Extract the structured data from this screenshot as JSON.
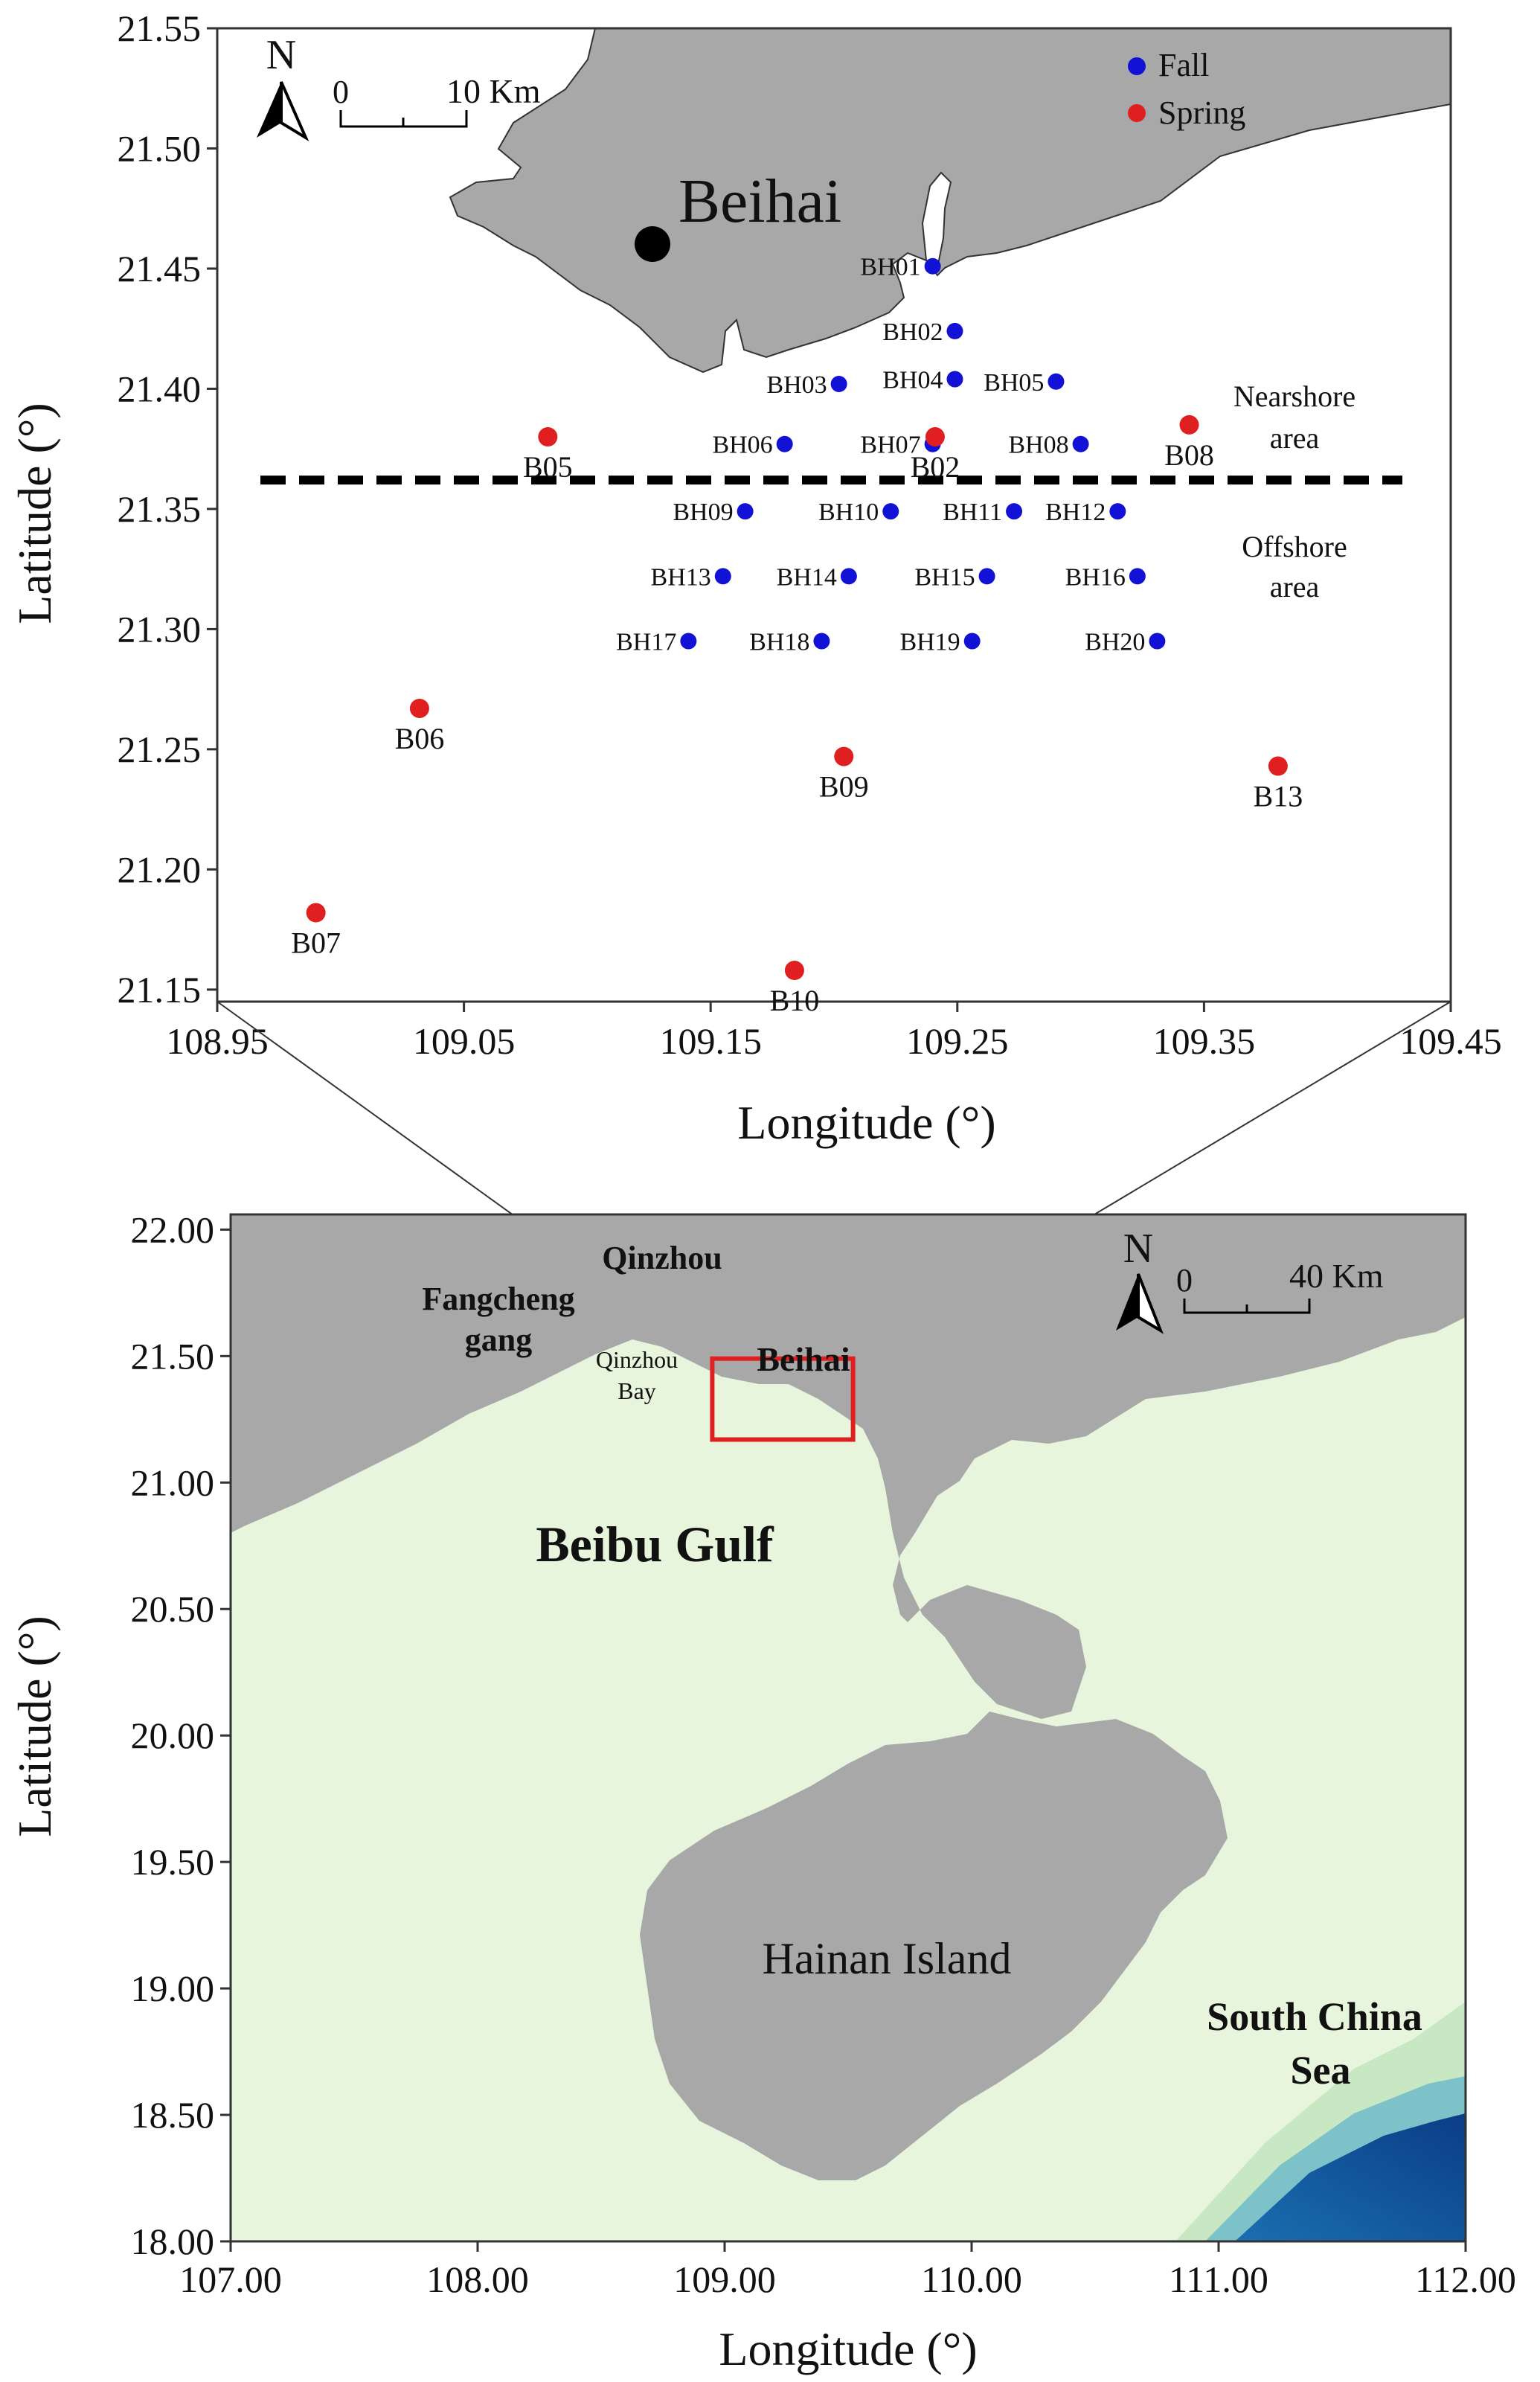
{
  "colors": {
    "fall": "#1212d6",
    "spring": "#e02020",
    "land": "#a8a8a8",
    "sea": "#e6f5dc",
    "inset_box": "#e02020"
  },
  "top_map": {
    "x_ticks": [
      "108.95",
      "109.05",
      "109.15",
      "109.25",
      "109.35",
      "109.45"
    ],
    "y_ticks": [
      "21.55",
      "21.50",
      "21.45",
      "21.40",
      "21.35",
      "21.30",
      "21.25",
      "21.20",
      "21.15"
    ],
    "xlabel": "Longitude (°)",
    "ylabel": "Latitude (°)",
    "city": "Beihai",
    "north": "N",
    "scale_zero": "0",
    "scale_label": "10 Km",
    "legend": {
      "fall": "Fall",
      "spring": "Spring"
    },
    "nearshore_1": "Nearshore",
    "nearshore_2": "area",
    "offshore_1": "Offshore",
    "offshore_2": "area",
    "divider_lat": 21.362,
    "fall_stations": [
      {
        "name": "BH01",
        "lon": 109.24,
        "lat": 21.451
      },
      {
        "name": "BH02",
        "lon": 109.249,
        "lat": 21.424
      },
      {
        "name": "BH03",
        "lon": 109.202,
        "lat": 21.402
      },
      {
        "name": "BH04",
        "lon": 109.249,
        "lat": 21.404
      },
      {
        "name": "BH05",
        "lon": 109.29,
        "lat": 21.403
      },
      {
        "name": "BH06",
        "lon": 109.18,
        "lat": 21.377
      },
      {
        "name": "BH07",
        "lon": 109.24,
        "lat": 21.377
      },
      {
        "name": "BH08",
        "lon": 109.3,
        "lat": 21.377
      },
      {
        "name": "BH09",
        "lon": 109.164,
        "lat": 21.349
      },
      {
        "name": "BH10",
        "lon": 109.223,
        "lat": 21.349
      },
      {
        "name": "BH11",
        "lon": 109.273,
        "lat": 21.349
      },
      {
        "name": "BH12",
        "lon": 109.315,
        "lat": 21.349
      },
      {
        "name": "BH13",
        "lon": 109.155,
        "lat": 21.322
      },
      {
        "name": "BH14",
        "lon": 109.206,
        "lat": 21.322
      },
      {
        "name": "BH15",
        "lon": 109.262,
        "lat": 21.322
      },
      {
        "name": "BH16",
        "lon": 109.323,
        "lat": 21.322
      },
      {
        "name": "BH17",
        "lon": 109.141,
        "lat": 21.295
      },
      {
        "name": "BH18",
        "lon": 109.195,
        "lat": 21.295
      },
      {
        "name": "BH19",
        "lon": 109.256,
        "lat": 21.295
      },
      {
        "name": "BH20",
        "lon": 109.331,
        "lat": 21.295
      }
    ],
    "spring_stations": [
      {
        "name": "B02",
        "lon": 109.241,
        "lat": 21.38
      },
      {
        "name": "B05",
        "lon": 109.084,
        "lat": 21.38
      },
      {
        "name": "B06",
        "lon": 109.032,
        "lat": 21.267
      },
      {
        "name": "B07",
        "lon": 108.99,
        "lat": 21.182
      },
      {
        "name": "B08",
        "lon": 109.344,
        "lat": 21.385
      },
      {
        "name": "B09",
        "lon": 109.204,
        "lat": 21.247
      },
      {
        "name": "B10",
        "lon": 109.184,
        "lat": 21.158
      },
      {
        "name": "B13",
        "lon": 109.38,
        "lat": 21.243
      }
    ]
  },
  "bottom_map": {
    "x_ticks": [
      "107.00",
      "108.00",
      "109.00",
      "110.00",
      "111.00",
      "112.00"
    ],
    "y_ticks": [
      "22.00",
      "21.50",
      "21.00",
      "20.50",
      "20.00",
      "19.50",
      "19.00",
      "18.50",
      "18.00"
    ],
    "xlabel": "Longitude (°)",
    "ylabel": "Latitude (°)",
    "north": "N",
    "scale_zero": "0",
    "scale_label": "40 Km",
    "places": {
      "qinzhou": "Qinzhou",
      "fangcheng_1": "Fangcheng",
      "fangcheng_2": "gang",
      "qinzhou_bay_1": "Qinzhou",
      "qinzhou_bay_2": "Bay",
      "beihai": "Beihai",
      "beibu_gulf": "Beibu Gulf",
      "hainan": "Hainan Island",
      "scs_1": "South China",
      "scs_2": "Sea"
    },
    "inset_box": {
      "lon_min": 108.95,
      "lon_max": 109.52,
      "lat_min": 21.17,
      "lat_max": 21.49
    }
  }
}
